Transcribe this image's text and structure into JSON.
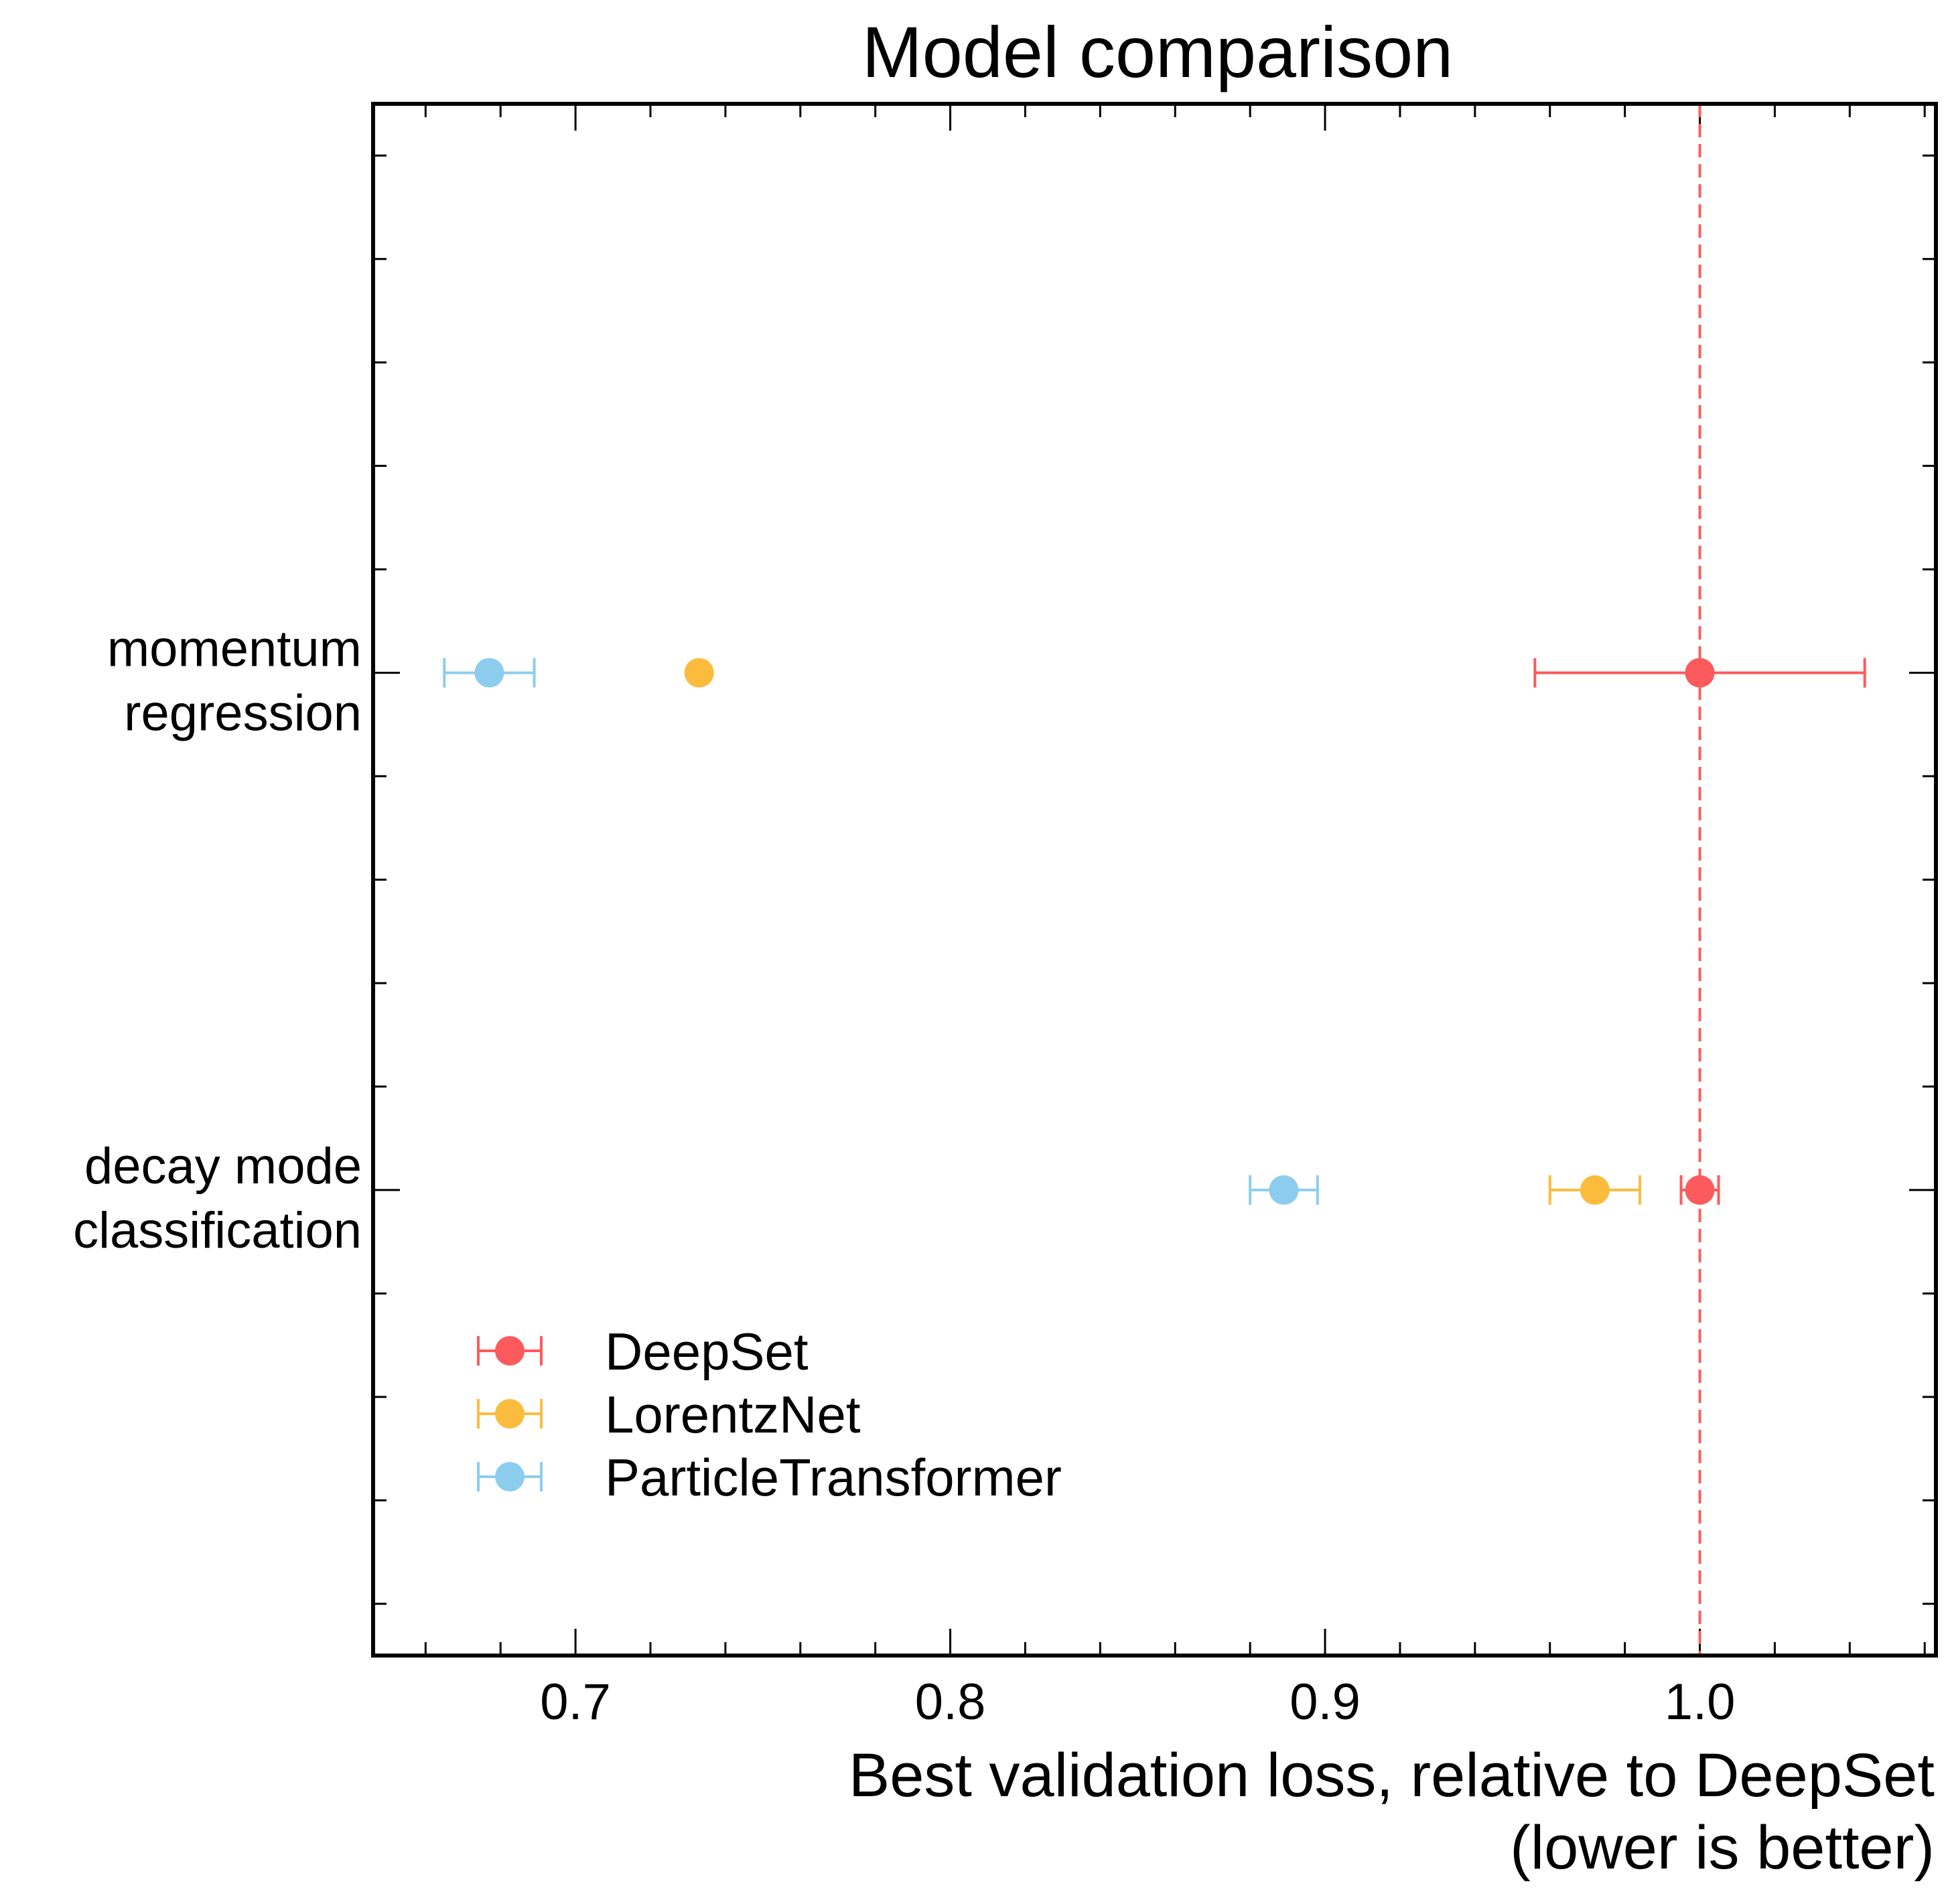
{
  "chart_data": {
    "type": "scatter",
    "title": "Model comparison",
    "xlabel": [
      "Best validation loss, relative to DeepSet",
      "(lower is better)"
    ],
    "ylabel": "",
    "xlim": [
      0.646,
      1.063
    ],
    "x_ticks": [
      0.7,
      0.8,
      0.9,
      1.0
    ],
    "x_tick_labels": [
      "0.7",
      "0.8",
      "0.9",
      "1.0"
    ],
    "categories": [
      {
        "lines": [
          "momentum",
          "regression"
        ]
      },
      {
        "lines": [
          "decay mode",
          "classification"
        ]
      }
    ],
    "reference_line": {
      "x": 1.0,
      "style": "dashed",
      "color": "#f95f5f"
    },
    "grid": false,
    "legend": {
      "placement": "lower-left"
    },
    "series": [
      {
        "name": "DeepSet",
        "color": "#fc5a5c",
        "points": [
          {
            "category": "momentum\nregression",
            "x": 1.0,
            "err_low": 0.044,
            "err_high": 0.044
          },
          {
            "category": "decay mode\nclassification",
            "x": 1.0,
            "err_low": 0.005,
            "err_high": 0.005
          }
        ]
      },
      {
        "name": "LorentzNet",
        "color": "#fbbc3e",
        "points": [
          {
            "category": "momentum\nregression",
            "x": 0.733,
            "err_low": 0.0,
            "err_high": 0.0
          },
          {
            "category": "decay mode\nclassification",
            "x": 0.972,
            "err_low": 0.012,
            "err_high": 0.012
          }
        ]
      },
      {
        "name": "ParticleTransformer",
        "color": "#8ccdee",
        "points": [
          {
            "category": "momentum\nregression",
            "x": 0.677,
            "err_low": 0.012,
            "err_high": 0.012
          },
          {
            "category": "decay mode\nclassification",
            "x": 0.889,
            "err_low": 0.009,
            "err_high": 0.009
          }
        ]
      }
    ]
  }
}
